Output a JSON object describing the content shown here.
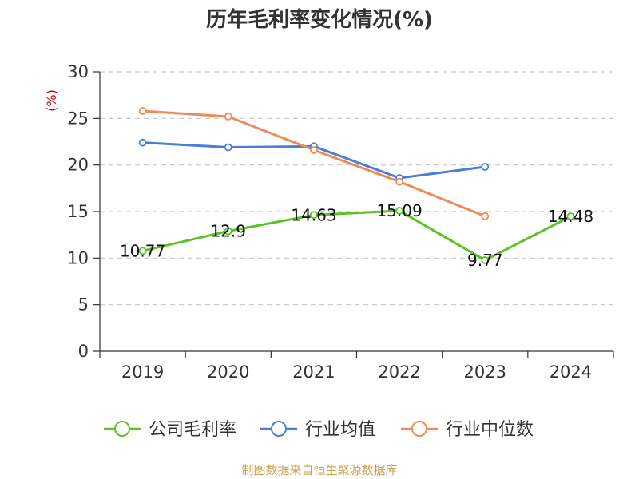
{
  "chart_data": {
    "type": "line",
    "title": "历年毛利率变化情况(%)",
    "ylabel": "(%)",
    "xlabel": "",
    "categories": [
      "2019",
      "2020",
      "2021",
      "2022",
      "2023",
      "2024"
    ],
    "ylim": [
      0,
      30
    ],
    "yticks": [
      0,
      5,
      10,
      15,
      20,
      25,
      30
    ],
    "grid": true,
    "legend_position": "bottom",
    "series": [
      {
        "name": "公司毛利率",
        "color": "#5cc225",
        "values": [
          10.77,
          12.9,
          14.63,
          15.09,
          9.77,
          14.48
        ],
        "labels": [
          "10.77",
          "12.9",
          "14.63",
          "15.09",
          "9.77",
          "14.48"
        ]
      },
      {
        "name": "行业均值",
        "color": "#4a7fd9",
        "values": [
          22.4,
          21.9,
          22.0,
          18.6,
          19.8,
          null
        ]
      },
      {
        "name": "行业中位数",
        "color": "#f08b55",
        "values": [
          25.8,
          25.2,
          21.6,
          18.2,
          14.5,
          null
        ]
      }
    ]
  },
  "ylabel_color": "#cc0000",
  "source": {
    "text": "制图数据来自恒生聚源数据库",
    "color": "#c8a04a"
  }
}
